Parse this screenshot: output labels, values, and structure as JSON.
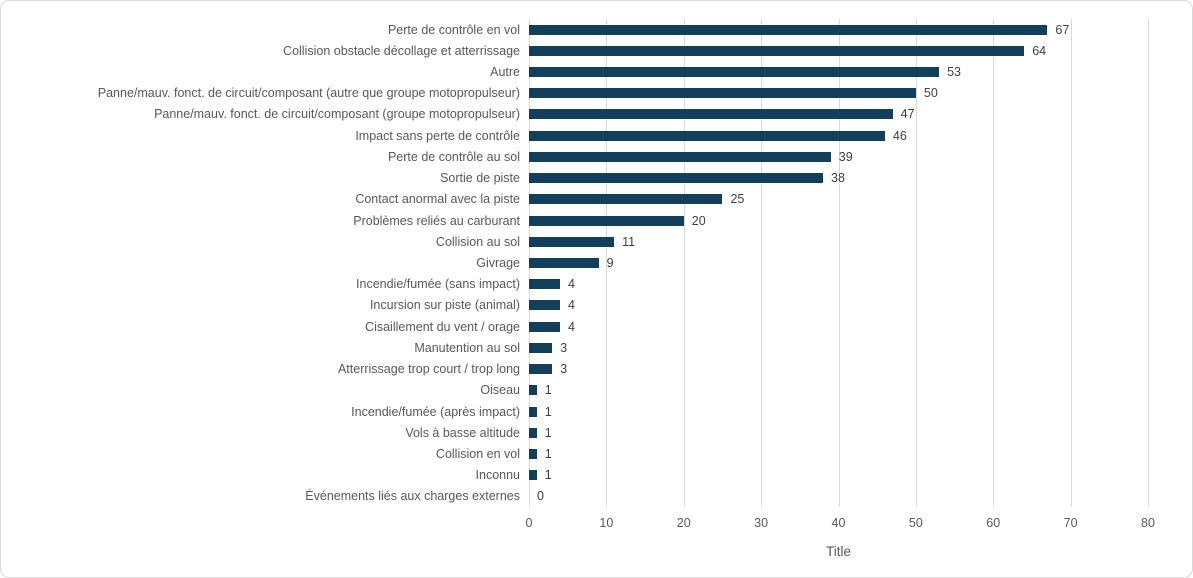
{
  "chart_data": {
    "type": "bar",
    "orientation": "horizontal",
    "title": "",
    "xlabel": "Title",
    "ylabel": "",
    "xlim": [
      0,
      80
    ],
    "x_ticks": [
      0,
      10,
      20,
      30,
      40,
      50,
      60,
      70,
      80
    ],
    "grid": "vertical-gridlines-on",
    "legend": "none",
    "categories": [
      "Perte de contrôle en vol",
      "Collision obstacle décollage et atterrissage",
      "Autre",
      "Panne/mauv. fonct. de circuit/composant (autre que groupe motopropulseur)",
      "Panne/mauv. fonct. de circuit/composant (groupe motopropulseur)",
      "Impact sans perte de contrôle",
      "Perte de contrôle au sol",
      "Sortie de piste",
      "Contact anormal avec la piste",
      "Problèmes reliés au carburant",
      "Collision au sol",
      "Givrage",
      "Incendie/fumée (sans impact)",
      "Incursion sur piste (animal)",
      "Cisaillement du vent / orage",
      "Manutention au sol",
      "Atterrissage trop court / trop long",
      "Oiseau",
      "Incendie/fumée (après impact)",
      "Vols à basse altitude",
      "Collision en vol",
      "Inconnu",
      "Événements liés aux charges externes"
    ],
    "values": [
      67,
      64,
      53,
      50,
      47,
      46,
      39,
      38,
      25,
      20,
      11,
      9,
      4,
      4,
      4,
      3,
      3,
      1,
      1,
      1,
      1,
      1,
      0
    ]
  },
  "colors": {
    "bar": "#12405c",
    "gridline": "#d9d9d9",
    "category_label": "#595959",
    "value_label": "#404040",
    "tick_label": "#595959",
    "axis_title": "#595959",
    "border": "#d9d9d9",
    "background": "#ffffff"
  }
}
